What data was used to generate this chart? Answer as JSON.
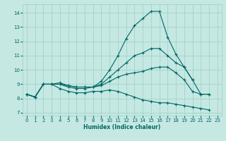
{
  "xlabel": "Humidex (Indice chaleur)",
  "xlim": [
    -0.5,
    23.5
  ],
  "ylim": [
    6.8,
    14.6
  ],
  "yticks": [
    7,
    8,
    9,
    10,
    11,
    12,
    13,
    14
  ],
  "xticks": [
    0,
    1,
    2,
    3,
    4,
    5,
    6,
    7,
    8,
    9,
    10,
    11,
    12,
    13,
    14,
    15,
    16,
    17,
    18,
    19,
    20,
    21,
    22,
    23
  ],
  "bg_color": "#c5e8e2",
  "grid_color": "#9dcdc6",
  "line_color": "#006666",
  "lines": [
    {
      "x": [
        0,
        1,
        2,
        3,
        4,
        5,
        6,
        7,
        8,
        9,
        10,
        11,
        12,
        13,
        14,
        15,
        16,
        17,
        18,
        19,
        20,
        21,
        22
      ],
      "y": [
        8.3,
        8.1,
        9.0,
        9.0,
        9.0,
        8.8,
        8.7,
        8.7,
        8.8,
        9.2,
        10.0,
        11.0,
        12.2,
        13.1,
        13.6,
        14.1,
        14.1,
        12.3,
        11.1,
        10.2,
        9.3,
        8.3,
        8.3
      ]
    },
    {
      "x": [
        0,
        1,
        2,
        3,
        4,
        5,
        6,
        7,
        8,
        9,
        10,
        11,
        12,
        13,
        14,
        15,
        16,
        17,
        18,
        19,
        20
      ],
      "y": [
        8.3,
        8.1,
        9.0,
        9.0,
        9.1,
        8.9,
        8.8,
        8.8,
        8.8,
        9.0,
        9.5,
        10.0,
        10.5,
        11.0,
        11.2,
        11.5,
        11.5,
        11.0,
        10.5,
        10.2,
        9.3
      ]
    },
    {
      "x": [
        0,
        1,
        2,
        3,
        4,
        5,
        6,
        7,
        8,
        9,
        10,
        11,
        12,
        13,
        14,
        15,
        16,
        17,
        18,
        19,
        20,
        21,
        22
      ],
      "y": [
        8.3,
        8.1,
        9.0,
        9.0,
        9.0,
        8.9,
        8.8,
        8.8,
        8.8,
        8.9,
        9.2,
        9.5,
        9.7,
        9.8,
        9.9,
        10.1,
        10.2,
        10.2,
        9.8,
        9.3,
        8.5,
        8.3,
        8.3
      ]
    },
    {
      "x": [
        0,
        1,
        2,
        3,
        4,
        5,
        6,
        7,
        8,
        9,
        10,
        11,
        12,
        13,
        14,
        15,
        16,
        17,
        18,
        19,
        20,
        21,
        22
      ],
      "y": [
        8.3,
        8.1,
        9.0,
        9.0,
        8.7,
        8.5,
        8.4,
        8.4,
        8.5,
        8.5,
        8.6,
        8.5,
        8.3,
        8.1,
        7.9,
        7.8,
        7.7,
        7.7,
        7.6,
        7.5,
        7.4,
        7.3,
        7.2
      ]
    }
  ]
}
